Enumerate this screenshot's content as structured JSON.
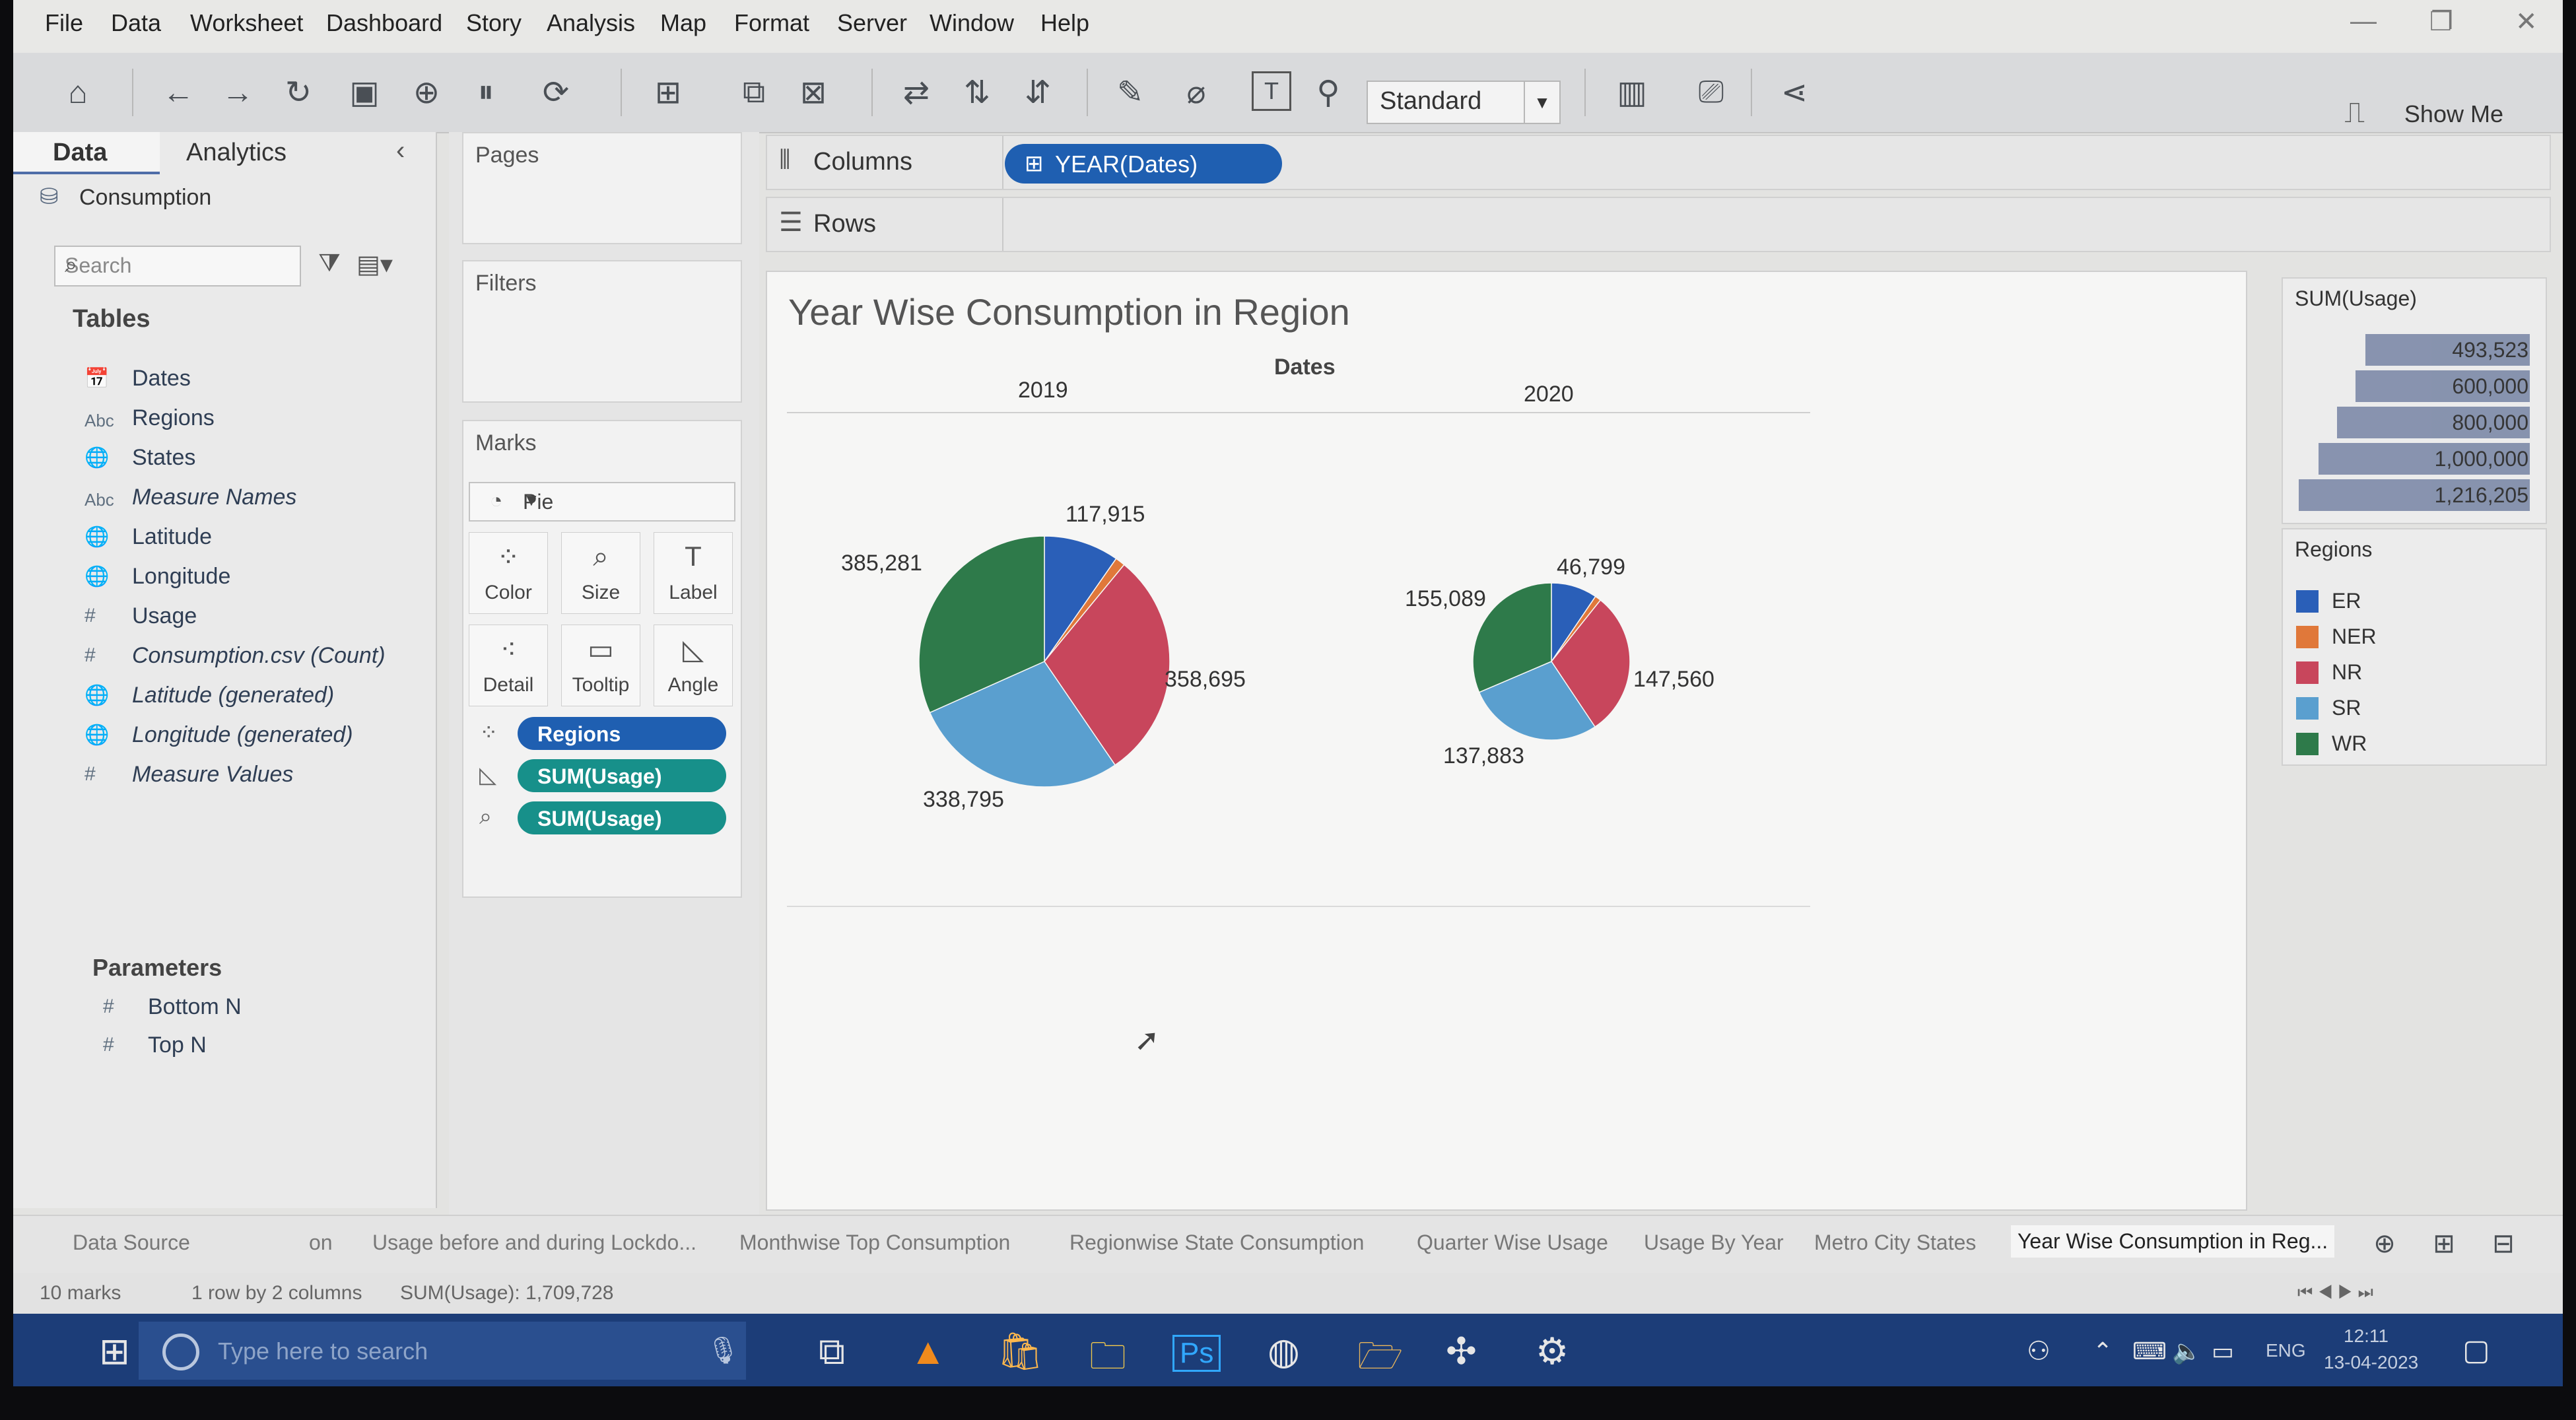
{
  "menu": [
    "File",
    "Data",
    "Worksheet",
    "Dashboard",
    "Story",
    "Analysis",
    "Map",
    "Format",
    "Server",
    "Window",
    "Help"
  ],
  "toolbar": {
    "fit_select": "Standard",
    "show_me": "Show Me"
  },
  "data_pane": {
    "tab_data": "Data",
    "tab_analytics": "Analytics",
    "source": "Consumption",
    "search_placeholder": "Search",
    "tables_heading": "Tables",
    "fields": [
      {
        "icon": "calendar-icon",
        "type": "📅",
        "label": "Dates",
        "italic": false
      },
      {
        "icon": "abc-icon",
        "type": "Abc",
        "label": "Regions",
        "italic": false
      },
      {
        "icon": "globe-icon",
        "type": "🌐",
        "label": "States",
        "italic": false
      },
      {
        "icon": "abc-icon",
        "type": "Abc",
        "label": "Measure Names",
        "italic": true
      },
      {
        "icon": "globe-icon",
        "type": "🌐",
        "label": "Latitude",
        "italic": false
      },
      {
        "icon": "globe-icon",
        "type": "🌐",
        "label": "Longitude",
        "italic": false
      },
      {
        "icon": "hash-icon",
        "type": "#",
        "label": "Usage",
        "italic": false
      },
      {
        "icon": "hash-icon",
        "type": "#",
        "label": "Consumption.csv (Count)",
        "italic": true
      },
      {
        "icon": "globe-icon",
        "type": "🌐",
        "label": "Latitude (generated)",
        "italic": true
      },
      {
        "icon": "globe-icon",
        "type": "🌐",
        "label": "Longitude (generated)",
        "italic": true
      },
      {
        "icon": "hash-icon",
        "type": "#",
        "label": "Measure Values",
        "italic": true
      }
    ],
    "parameters_heading": "Parameters",
    "parameters": [
      {
        "type": "#",
        "label": "Bottom N"
      },
      {
        "type": "#",
        "label": "Top N"
      }
    ]
  },
  "cards": {
    "pages": "Pages",
    "filters": "Filters",
    "marks": "Marks",
    "mark_type": "Pie",
    "buttons": [
      {
        "name": "color",
        "icon": "⁘",
        "label": "Color"
      },
      {
        "name": "size",
        "icon": "⌕",
        "label": "Size"
      },
      {
        "name": "label",
        "icon": "T",
        "label": "Label"
      },
      {
        "name": "detail",
        "icon": "⁖",
        "label": "Detail"
      },
      {
        "name": "tooltip",
        "icon": "▭",
        "label": "Tooltip"
      },
      {
        "name": "angle",
        "icon": "◺",
        "label": "Angle"
      }
    ],
    "pills": [
      {
        "icon": "⁘",
        "label": "Regions",
        "color": "#1f5fb1"
      },
      {
        "icon": "◺",
        "label": "SUM(Usage)",
        "color": "#17908a"
      },
      {
        "icon": "⌕",
        "label": "SUM(Usage)",
        "color": "#17908a"
      }
    ]
  },
  "shelves": {
    "columns": "Columns",
    "rows": "Rows",
    "columns_pill": "YEAR(Dates)"
  },
  "colors": {
    "ER": "#2a5fb8",
    "NER": "#e0783a",
    "NR": "#c8465c",
    "SR": "#5a9fcf",
    "WR": "#2e7a4a"
  },
  "chart_data": {
    "type": "pie",
    "title": "Year Wise Consumption in Region",
    "header": "Dates",
    "categories": [
      "ER",
      "NER",
      "NR",
      "SR",
      "WR"
    ],
    "pies": [
      {
        "year": "2019",
        "total": 1216205,
        "labels": {
          "ER": "117,915",
          "NR": "358,695",
          "SR": "338,795",
          "WR": "385,281"
        },
        "values": {
          "ER": 117915,
          "NER": 15519,
          "NR": 358695,
          "SR": 338795,
          "WR": 385281
        }
      },
      {
        "year": "2020",
        "total": 493523,
        "labels": {
          "ER": "46,799",
          "NR": "147,560",
          "SR": "137,883",
          "WR": "155,089"
        },
        "values": {
          "ER": 46799,
          "NER": 6192,
          "NR": 147560,
          "SR": 137883,
          "WR": 155089
        }
      }
    ]
  },
  "size_legend": {
    "title": "SUM(Usage)",
    "values": [
      "493,523",
      "600,000",
      "800,000",
      "1,000,000",
      "1,216,205"
    ]
  },
  "color_legend": {
    "title": "Regions",
    "items": [
      "ER",
      "NER",
      "NR",
      "SR",
      "WR"
    ]
  },
  "sheet_tabs": [
    "Data Source",
    "on",
    "Usage before and during Lockdo...",
    "Monthwise Top Consumption",
    "Regionwise State Consumption",
    "Quarter Wise Usage",
    "Usage By Year",
    "Metro City States",
    "Year Wise Consumption in Reg..."
  ],
  "status": {
    "marks": "10 marks",
    "grid": "1 row by 2 columns",
    "sum": "SUM(Usage): 1,709,728"
  },
  "taskbar": {
    "search_placeholder": "Type here to search",
    "lang": "ENG",
    "time": "12:11",
    "date": "13-04-2023"
  }
}
